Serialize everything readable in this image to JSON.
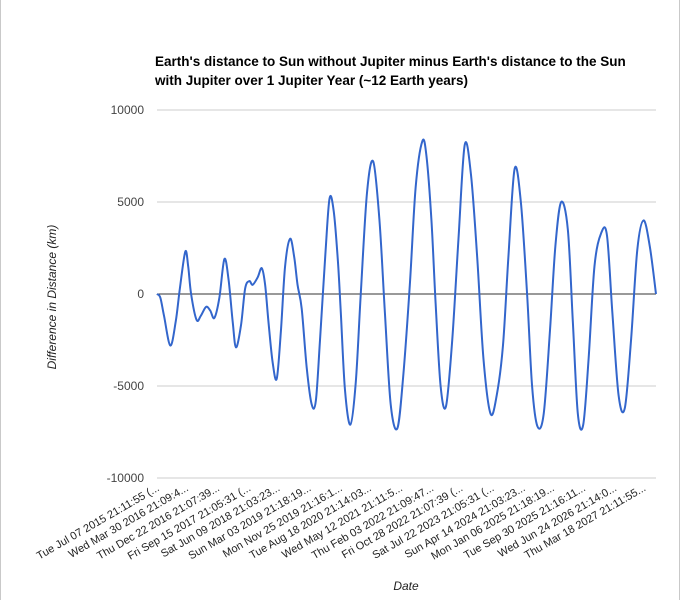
{
  "chart_data": {
    "type": "line",
    "title": "Earth's distance to Sun without Jupiter minus Earth's distance to the Sun with Jupiter over 1 Jupiter Year (~12 Earth years)",
    "title_lines": [
      "Earth's distance to Sun without Jupiter minus Earth's distance to the Sun",
      "with Jupiter over 1 Jupiter Year (~12 Earth years)"
    ],
    "xlabel": "Date",
    "ylabel": "Difference in Distance (km)",
    "ylim": [
      -10000,
      10000
    ],
    "yticks": [
      10000,
      5000,
      0,
      -5000,
      -10000
    ],
    "ytick_labels": [
      "10000",
      "5000",
      "0",
      "-5000",
      "-10000"
    ],
    "xlim": [
      0,
      12
    ],
    "xticks": [
      0,
      0.7,
      1.45,
      2.2,
      2.9,
      3.65,
      4.4,
      5.1,
      5.85,
      6.6,
      7.3,
      8.05,
      8.8,
      9.5,
      10.25,
      11.0,
      11.7
    ],
    "xtick_labels": [
      "Tue Jul 07 2015 21:11:55 (...",
      "Wed Mar 30 2016 21:09:4...",
      "Thu Dec 22 2016 21:07:39...",
      "Fri Sep 15 2017 21:05:31 (...",
      "Sat Jun 09 2018 21:03:23...",
      "Sun Mar 03 2019 21:18:19...",
      "Mon Nov 25 2019 21:16:1...",
      "Tue Aug 18 2020 21:14:03...",
      "Wed May 12 2021 21:11:5...",
      "Thu Feb 03 2022 21:09:47...",
      "Fri Oct 28 2022 21:07:39 (...",
      "Sat Jul 22 2023 21:05:31 (...",
      "Sun Apr 14 2024 21:03:23...",
      "Mon Jan 06 2025 21:18:19...",
      "Tue Sep 30 2025 21:16:11...",
      "Wed Jun 24 2026 21:14:0...",
      "Thu Mar 18 2027 21:11:55..."
    ],
    "grid": true,
    "legend": "none",
    "series": [
      {
        "color": "#3366cc",
        "x": [
          0.0,
          0.08,
          0.17,
          0.32,
          0.45,
          0.55,
          0.68,
          0.75,
          0.82,
          0.95,
          1.05,
          1.18,
          1.28,
          1.38,
          1.5,
          1.62,
          1.72,
          1.82,
          1.9,
          2.02,
          2.12,
          2.22,
          2.3,
          2.42,
          2.52,
          2.6,
          2.68,
          2.78,
          2.88,
          2.98,
          3.08,
          3.2,
          3.3,
          3.38,
          3.48,
          3.6,
          3.72,
          3.82,
          3.92,
          4.05,
          4.15,
          4.25,
          4.35,
          4.42,
          4.52,
          4.65,
          4.78,
          4.9,
          5.05,
          5.2,
          5.35,
          5.48,
          5.62,
          5.78,
          5.92,
          6.08,
          6.22,
          6.38,
          6.48,
          6.6,
          6.7,
          6.82,
          6.95,
          7.1,
          7.25,
          7.4,
          7.55,
          7.7,
          7.85,
          8.02,
          8.17,
          8.32,
          8.45,
          8.6,
          8.75,
          8.9,
          9.02,
          9.15,
          9.3,
          9.45,
          9.58,
          9.72,
          9.88,
          10.0,
          10.12,
          10.25,
          10.38,
          10.52,
          10.68,
          10.82,
          10.95,
          11.1,
          11.25,
          11.4,
          11.55,
          11.7,
          11.85,
          12.0
        ],
        "y": [
          0,
          -200,
          -1200,
          -2800,
          -1500,
          300,
          2300,
          1500,
          0,
          -1400,
          -1200,
          -700,
          -900,
          -1300,
          -200,
          1900,
          800,
          -1500,
          -2900,
          -1700,
          300,
          700,
          500,
          900,
          1400,
          500,
          -1500,
          -3700,
          -4600,
          -2000,
          1500,
          3000,
          2000,
          500,
          -800,
          -4000,
          -6000,
          -5800,
          -2500,
          2200,
          5200,
          4500,
          1800,
          -1000,
          -5200,
          -7100,
          -4800,
          0,
          5500,
          7200,
          4000,
          -1000,
          -6000,
          -7300,
          -4500,
          500,
          5800,
          8300,
          7500,
          4000,
          -500,
          -5000,
          -6100,
          -2500,
          3000,
          8100,
          6500,
          2000,
          -3500,
          -6500,
          -5500,
          -2800,
          2000,
          6800,
          5000,
          0,
          -5000,
          -7200,
          -6500,
          -2000,
          2600,
          5000,
          3500,
          -1500,
          -6500,
          -7100,
          -3500,
          1500,
          3300,
          3200,
          -1000,
          -5500,
          -6200,
          -2500,
          2400,
          4000,
          2600,
          0
        ]
      }
    ]
  }
}
